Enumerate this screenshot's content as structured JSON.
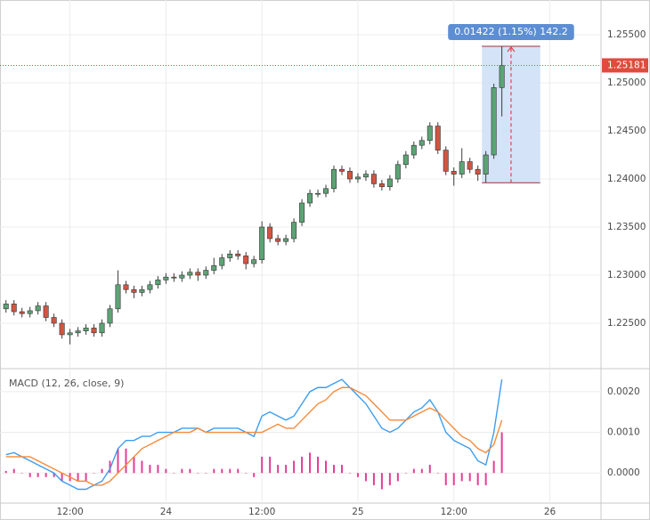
{
  "chart_data": [
    {
      "type": "candlestick",
      "x": [
        4,
        5,
        6,
        7,
        8,
        9,
        10,
        11,
        12,
        13,
        14,
        15,
        16,
        17,
        18,
        19,
        20,
        21,
        22,
        23,
        24,
        25,
        26,
        27,
        28,
        29,
        30,
        31,
        32,
        33,
        34,
        35,
        36,
        37,
        38,
        39,
        40,
        41,
        42,
        43,
        44,
        45,
        46,
        47,
        48,
        49,
        50,
        51,
        52,
        53,
        54,
        55,
        56,
        57,
        58,
        59,
        60,
        61,
        62,
        63,
        64,
        65,
        66
      ],
      "open": [
        1.2265,
        1.227,
        1.2262,
        1.226,
        1.2263,
        1.2268,
        1.2256,
        1.225,
        1.2238,
        1.224,
        1.2242,
        1.2245,
        1.224,
        1.225,
        1.2265,
        1.229,
        1.2285,
        1.2282,
        1.2285,
        1.229,
        1.2295,
        1.2298,
        1.2297,
        1.23,
        1.2303,
        1.23,
        1.2305,
        1.231,
        1.2318,
        1.2322,
        1.232,
        1.2312,
        1.2316,
        1.235,
        1.2338,
        1.2335,
        1.2338,
        1.2355,
        1.2375,
        1.2385,
        1.2385,
        1.239,
        1.241,
        1.2408,
        1.24,
        1.2402,
        1.2405,
        1.2395,
        1.2392,
        1.24,
        1.2415,
        1.2425,
        1.2435,
        1.244,
        1.2455,
        1.243,
        1.2408,
        1.2405,
        1.2418,
        1.241,
        1.2405,
        1.2425,
        1.2495
      ],
      "high": [
        1.2274,
        1.2274,
        1.2266,
        1.2267,
        1.2272,
        1.2272,
        1.226,
        1.2254,
        1.2244,
        1.2246,
        1.2249,
        1.2249,
        1.2254,
        1.2269,
        1.2305,
        1.2294,
        1.2289,
        1.2289,
        1.2294,
        1.2299,
        1.2302,
        1.2302,
        1.2304,
        1.2307,
        1.2307,
        1.2309,
        1.2318,
        1.2322,
        1.2326,
        1.2326,
        1.2324,
        1.232,
        1.2356,
        1.2354,
        1.2342,
        1.2342,
        1.2359,
        1.2379,
        1.2389,
        1.2389,
        1.2394,
        1.2414,
        1.2414,
        1.2412,
        1.2406,
        1.2409,
        1.2409,
        1.2399,
        1.2404,
        1.2419,
        1.2429,
        1.2439,
        1.2444,
        1.2459,
        1.2459,
        1.2434,
        1.2412,
        1.2432,
        1.2422,
        1.2414,
        1.2429,
        1.2499,
        1.2538
      ],
      "low": [
        1.2261,
        1.2258,
        1.2256,
        1.2256,
        1.2259,
        1.2252,
        1.2246,
        1.2234,
        1.2228,
        1.2236,
        1.2238,
        1.2236,
        1.2236,
        1.2246,
        1.2261,
        1.2281,
        1.2276,
        1.2278,
        1.2281,
        1.2286,
        1.2291,
        1.2293,
        1.2293,
        1.2296,
        1.2294,
        1.2296,
        1.2301,
        1.2306,
        1.2314,
        1.2316,
        1.2306,
        1.2308,
        1.2312,
        1.2334,
        1.2331,
        1.2331,
        1.2334,
        1.2351,
        1.2371,
        1.2381,
        1.2381,
        1.2386,
        1.2404,
        1.2396,
        1.2396,
        1.2398,
        1.2391,
        1.2388,
        1.2388,
        1.2396,
        1.2411,
        1.2421,
        1.2431,
        1.2436,
        1.2426,
        1.2404,
        1.2393,
        1.2401,
        1.2406,
        1.2398,
        1.2396,
        1.2421,
        1.2465
      ],
      "close": [
        1.227,
        1.2262,
        1.226,
        1.2263,
        1.2268,
        1.2256,
        1.225,
        1.2238,
        1.224,
        1.2242,
        1.2245,
        1.224,
        1.225,
        1.2265,
        1.229,
        1.2285,
        1.2282,
        1.2285,
        1.229,
        1.2295,
        1.2298,
        1.2297,
        1.23,
        1.2303,
        1.23,
        1.2305,
        1.231,
        1.2318,
        1.2322,
        1.232,
        1.2312,
        1.2316,
        1.235,
        1.2338,
        1.2335,
        1.2338,
        1.2355,
        1.2375,
        1.2385,
        1.2385,
        1.239,
        1.241,
        1.2408,
        1.24,
        1.2402,
        1.2405,
        1.2395,
        1.2392,
        1.24,
        1.2415,
        1.2425,
        1.2435,
        1.244,
        1.2455,
        1.243,
        1.2408,
        1.2405,
        1.2418,
        1.241,
        1.2405,
        1.2425,
        1.2495,
        1.2518
      ],
      "up_color": "#5aa574",
      "down_color": "#d7533f",
      "xlim": [
        3.25,
        78.4
      ],
      "ylim": [
        1.22037,
        1.25861
      ],
      "yticks": [
        {
          "value": 1.225,
          "label": "1.22500"
        },
        {
          "value": 1.23,
          "label": "1.23000"
        },
        {
          "value": 1.235,
          "label": "1.23500"
        },
        {
          "value": 1.24,
          "label": "1.24000"
        },
        {
          "value": 1.245,
          "label": "1.24500"
        },
        {
          "value": 1.25,
          "label": "1.25000"
        },
        {
          "value": 1.255,
          "label": "1.25500"
        }
      ],
      "xticks": [
        {
          "value": 12,
          "label": "12:00"
        },
        {
          "value": 24,
          "label": "24"
        },
        {
          "value": 36,
          "label": "12:00"
        },
        {
          "value": 48,
          "label": "25"
        },
        {
          "value": 60,
          "label": "12:00"
        },
        {
          "value": 72,
          "label": "26"
        }
      ],
      "grid": true,
      "last_price": 1.25181,
      "measure": {
        "label": "0.01422 (1.15%) 142.2",
        "x": [
          63.5,
          70.8
        ],
        "price": [
          1.2396,
          1.2538
        ]
      }
    },
    {
      "type": "macd",
      "title": "MACD (12, 26, close, 9)",
      "x": [
        4,
        5,
        6,
        7,
        8,
        9,
        10,
        11,
        12,
        13,
        14,
        15,
        16,
        17,
        18,
        19,
        20,
        21,
        22,
        23,
        24,
        25,
        26,
        27,
        28,
        29,
        30,
        31,
        32,
        33,
        34,
        35,
        36,
        37,
        38,
        39,
        40,
        41,
        42,
        43,
        44,
        45,
        46,
        47,
        48,
        49,
        50,
        51,
        52,
        53,
        54,
        55,
        56,
        57,
        58,
        59,
        60,
        61,
        62,
        63,
        64,
        65,
        66
      ],
      "series": [
        {
          "color": "#3d9df0",
          "values": [
            0.00045,
            0.0005,
            0.0004,
            0.0003,
            0.0002,
            0.0001,
            0.0,
            -0.0002,
            -0.0003,
            -0.0004,
            -0.0004,
            -0.0003,
            -0.0002,
            0.0001,
            0.0006,
            0.0008,
            0.0008,
            0.0009,
            0.0009,
            0.001,
            0.001,
            0.001,
            0.0011,
            0.0011,
            0.0011,
            0.001,
            0.0011,
            0.0011,
            0.0011,
            0.0011,
            0.001,
            0.0009,
            0.0014,
            0.0015,
            0.0014,
            0.0013,
            0.0014,
            0.0017,
            0.002,
            0.0021,
            0.0021,
            0.0022,
            0.0023,
            0.0021,
            0.0019,
            0.0017,
            0.0014,
            0.0011,
            0.001,
            0.0011,
            0.0013,
            0.0015,
            0.0016,
            0.0018,
            0.0015,
            0.001,
            0.0008,
            0.0007,
            0.0006,
            0.0003,
            0.0002,
            0.001,
            0.0023
          ]
        },
        {
          "color": "#f58b3c",
          "values": [
            0.0004,
            0.0004,
            0.0004,
            0.0004,
            0.0003,
            0.0002,
            0.0001,
            0.0,
            -0.0001,
            -0.0002,
            -0.0002,
            -0.0003,
            -0.0003,
            -0.0002,
            0.0,
            0.0002,
            0.0004,
            0.0006,
            0.0007,
            0.0008,
            0.0009,
            0.001,
            0.001,
            0.001,
            0.0011,
            0.001,
            0.001,
            0.001,
            0.001,
            0.001,
            0.001,
            0.001,
            0.001,
            0.0011,
            0.0012,
            0.0011,
            0.0011,
            0.0013,
            0.0015,
            0.0017,
            0.0018,
            0.002,
            0.0021,
            0.0021,
            0.002,
            0.0019,
            0.0017,
            0.0015,
            0.0013,
            0.0013,
            0.0013,
            0.0014,
            0.0015,
            0.0016,
            0.0015,
            0.0013,
            0.0011,
            0.0009,
            0.0008,
            0.0006,
            0.0005,
            0.0007,
            0.0013
          ]
        }
      ],
      "histogram": {
        "color": "#e23f95",
        "values": [
          5e-05,
          0.0001,
          0.0,
          -0.0001,
          -0.0001,
          -0.0001,
          -0.0001,
          -0.0002,
          -0.0002,
          -0.0002,
          -0.0002,
          0.0,
          0.0001,
          0.0003,
          0.0006,
          0.0006,
          0.0004,
          0.0003,
          0.0002,
          0.0002,
          0.0001,
          0.0,
          0.0001,
          0.0001,
          0.0,
          0.0,
          0.0001,
          0.0001,
          0.0001,
          0.0001,
          0.0,
          -0.0001,
          0.0004,
          0.0004,
          0.0002,
          0.0002,
          0.0003,
          0.0004,
          0.0005,
          0.0004,
          0.0003,
          0.0002,
          0.0002,
          0.0,
          -0.0001,
          -0.0002,
          -0.0003,
          -0.0004,
          -0.0003,
          -0.0002,
          0.0,
          0.0001,
          0.0001,
          0.0002,
          0.0,
          -0.0003,
          -0.0003,
          -0.0002,
          -0.0002,
          -0.0003,
          -0.0003,
          0.0003,
          0.001
        ]
      },
      "xlim": [
        3.25,
        78.4
      ],
      "ylim": [
        -0.000739,
        0.002543
      ],
      "yticks": [
        {
          "value": 0.0,
          "label": "0.0000"
        },
        {
          "value": 0.001,
          "label": "0.0010"
        },
        {
          "value": 0.002,
          "label": "0.0020"
        }
      ]
    }
  ]
}
